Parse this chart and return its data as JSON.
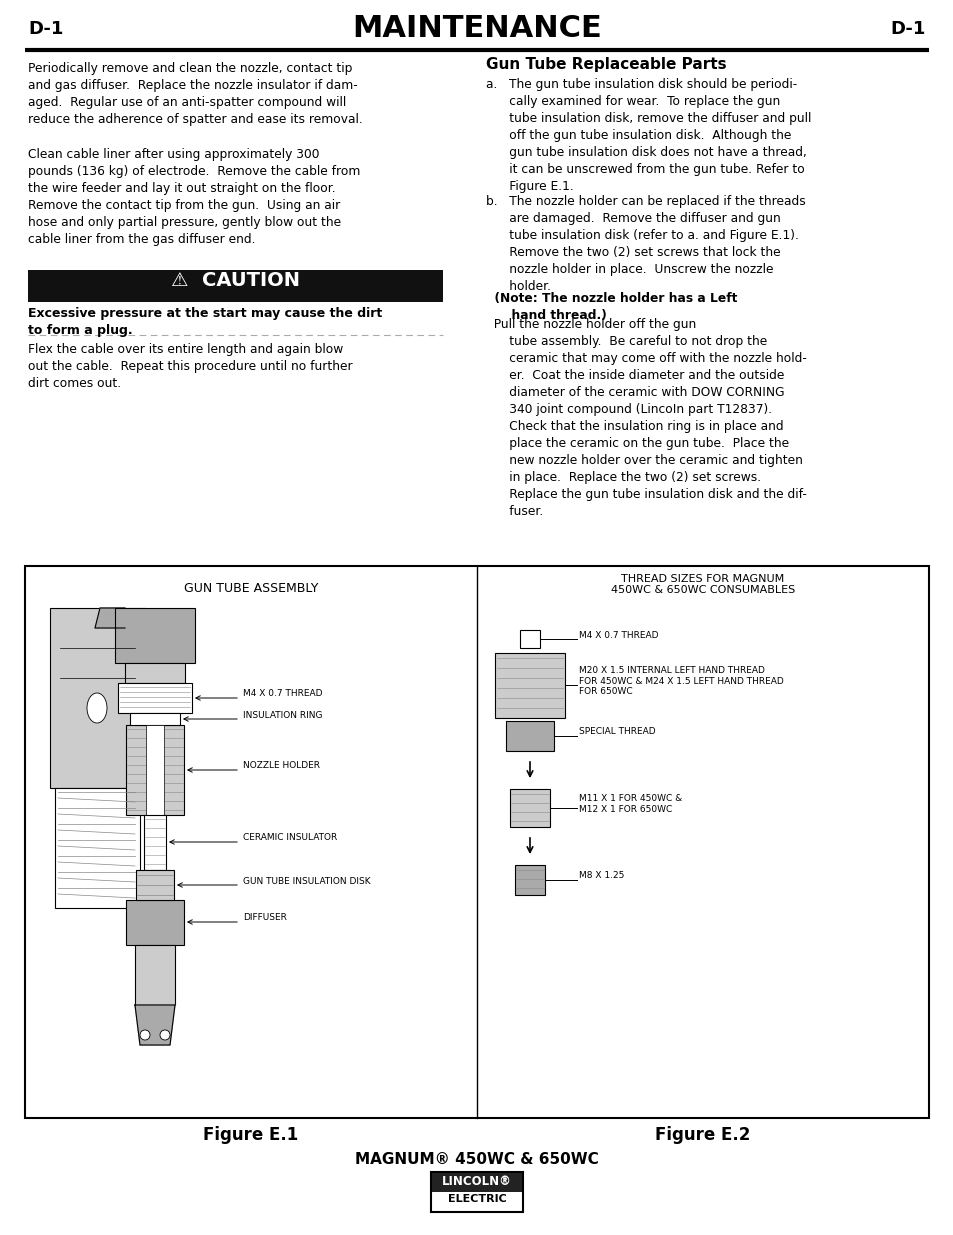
{
  "title": "MAINTENANCE",
  "title_left": "D-1",
  "title_right": "D-1",
  "bg_color": "#ffffff",
  "left_col_p1": "Periodically remove and clean the nozzle, contact tip\nand gas diffuser.  Replace the nozzle insulator if dam-\naged.  Regular use of an anti-spatter compound will\nreduce the adherence of spatter and ease its removal.",
  "left_col_p2": "Clean cable liner after using approximately 300\npounds (136 kg) of electrode.  Remove the cable from\nthe wire feeder and lay it out straight on the floor.\nRemove the contact tip from the gun.  Using an air\nhose and only partial pressure, gently blow out the\ncable liner from the gas diffuser end.",
  "left_col_p3": "Flex the cable over its entire length and again blow\nout the cable.  Repeat this procedure until no further\ndirt comes out.",
  "caution_text": "⚠  CAUTION",
  "caution_subtext": "Excessive pressure at the start may cause the dirt\nto form a plug.",
  "right_col_title": "Gun Tube Replaceable Parts",
  "right_col_a": "a.   The gun tube insulation disk should be periodi-\n      cally examined for wear.  To replace the gun\n      tube insulation disk, remove the diffuser and pull\n      off the gun tube insulation disk.  Although the\n      gun tube insulation disk does not have a thread,\n      it can be unscrewed from the gun tube. Refer to\n      Figure E.1.",
  "right_col_b1": "b.   The nozzle holder can be replaced if the threads\n      are damaged.  Remove the diffuser and gun\n      tube insulation disk (refer to a. and Figure E.1).\n      Remove the two (2) set screws that lock the\n      nozzle holder in place.  Unscrew the nozzle\n      holder.  ",
  "right_col_b_bold": "(Note: The nozzle holder has a Left\n      hand thread.) ",
  "right_col_b2": "Pull the nozzle holder off the gun\n      tube assembly.  Be careful to not drop the\n      ceramic that may come off with the nozzle hold-\n      er.  Coat the inside diameter and the outside\n      diameter of the ceramic with DOW CORNING\n      340 joint compound (LincoIn part T12837).\n      Check that the insulation ring is in place and\n      place the ceramic on the gun tube.  Place the\n      new nozzle holder over the ceramic and tighten\n      in place.  Replace the two (2) set screws.\n      Replace the gun tube insulation disk and the dif-\n      fuser.",
  "fig1_label": "Figure E.1",
  "fig2_label": "Figure E.2",
  "bottom_text": "MAGNUM® 450WC & 650WC",
  "fig1_title": "GUN TUBE ASSEMBLY",
  "fig2_title_line1": "THREAD SIZES FOR MAGNUM",
  "fig2_title_line2": "450WC & 650WC CONSUMABLES",
  "fig1_labels": [
    "M4 X 0.7 THREAD",
    "INSULATION RING",
    "NOZZLE HOLDER",
    "CERAMIC INSULATOR",
    "GUN TUBE INSULATION DISK",
    "DIFFUSER"
  ],
  "fig2_labels": [
    "M4 X 0.7 THREAD",
    "M20 X 1.5 INTERNAL LEFT HAND THREAD\nFOR 450WC & M24 X 1.5 LEFT HAND THREAD\nFOR 650WC",
    "SPECIAL THREAD",
    "M11 X 1 FOR 450WC &\nM12 X 1 FOR 650WC",
    "M8 X 1.25"
  ]
}
